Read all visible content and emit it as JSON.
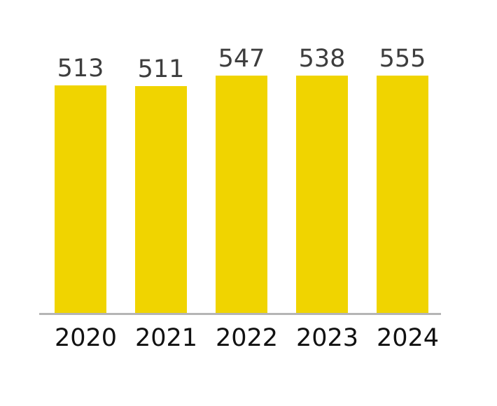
{
  "chart_data": {
    "type": "bar",
    "categories": [
      "2020",
      "2021",
      "2022",
      "2023",
      "2024"
    ],
    "values": [
      513,
      511,
      547,
      538,
      555
    ],
    "data_labels": [
      "513",
      "511",
      "547",
      "538",
      "555"
    ],
    "ylim": [
      0,
      600
    ],
    "grid": false,
    "legend": false,
    "bar_color": "#F0D400",
    "value_label_color": "#3D3D3D",
    "category_label_color": "#111111",
    "axis_line_color": "#B5B5B5",
    "background_color": "#FFFFFF"
  }
}
